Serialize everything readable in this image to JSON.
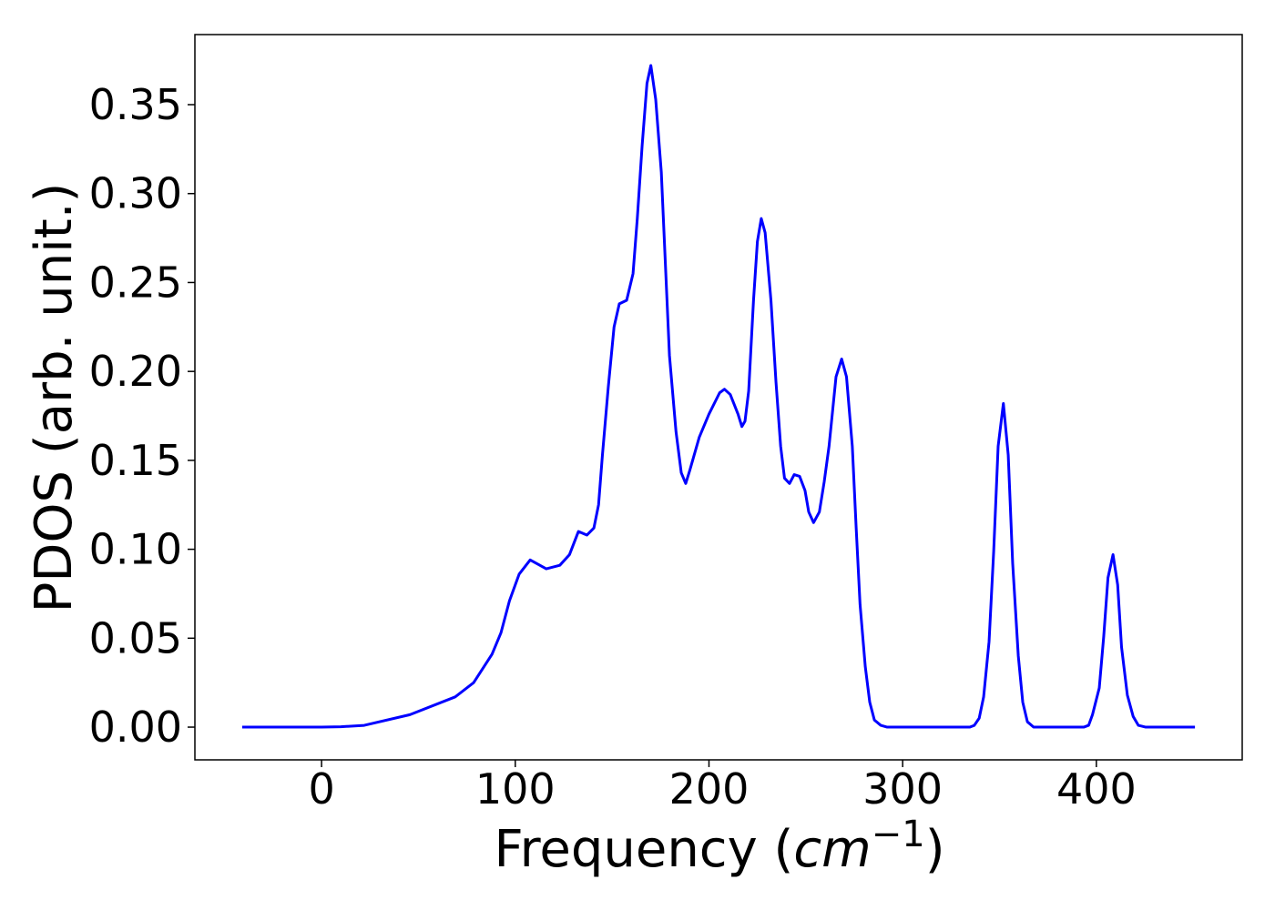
{
  "chart_data": {
    "type": "line",
    "xlabel": {
      "prefix": "Frequency (",
      "italic": "cm",
      "sup": "−1",
      "suffix": ")"
    },
    "ylabel": "PDOS (arb. unit.)",
    "xlim": [
      -65.4,
      475.3
    ],
    "ylim": [
      -0.0184,
      0.3894
    ],
    "xticks": [
      0,
      100,
      200,
      300,
      400
    ],
    "yticks": [
      {
        "value": 0,
        "label": "0.00"
      },
      {
        "value": 0.05,
        "label": "0.05"
      },
      {
        "value": 0.1,
        "label": "0.10"
      },
      {
        "value": 0.15,
        "label": "0.15"
      },
      {
        "value": 0.2,
        "label": "0.20"
      },
      {
        "value": 0.25,
        "label": "0.25"
      },
      {
        "value": 0.3,
        "label": "0.30"
      },
      {
        "value": 0.35,
        "label": "0.35"
      }
    ],
    "series": [
      {
        "color": "#0000ff",
        "x": [
          -41,
          0,
          10,
          22,
          45.6,
          69,
          78.5,
          88,
          92.6,
          97,
          102,
          107.7,
          111,
          116,
          123,
          128,
          132.6,
          137,
          140.6,
          143,
          145,
          148,
          151,
          153.7,
          157.5,
          160.8,
          163,
          165.5,
          168,
          170,
          172.5,
          175.4,
          179.6,
          183,
          185.7,
          188,
          190,
          195,
          200,
          205.5,
          208,
          211,
          215,
          217,
          218.6,
          220.5,
          223,
          225,
          227,
          229,
          232,
          234.6,
          237,
          239,
          241.6,
          244,
          246.8,
          249.6,
          251.5,
          254,
          257,
          259.5,
          262,
          265.6,
          268.5,
          271,
          274,
          276,
          278,
          280.7,
          283,
          285.4,
          288.7,
          292,
          334.7,
          337,
          339.5,
          341.8,
          344.6,
          347,
          349.3,
          352,
          354.5,
          356.8,
          359.7,
          362,
          364.4,
          367.6,
          393.5,
          396,
          398,
          401.5,
          403.8,
          406,
          408.6,
          411,
          413,
          416,
          419,
          421.7,
          425.5,
          450.9
        ],
        "values": [
          0,
          0,
          0.0002,
          0.001,
          0.007,
          0.017,
          0.025,
          0.041,
          0.053,
          0.071,
          0.086,
          0.094,
          0.092,
          0.089,
          0.091,
          0.097,
          0.11,
          0.108,
          0.112,
          0.125,
          0.153,
          0.191,
          0.225,
          0.238,
          0.24,
          0.255,
          0.286,
          0.327,
          0.362,
          0.372,
          0.353,
          0.312,
          0.209,
          0.166,
          0.143,
          0.137,
          0.144,
          0.163,
          0.176,
          0.188,
          0.19,
          0.187,
          0.176,
          0.169,
          0.172,
          0.189,
          0.24,
          0.273,
          0.286,
          0.278,
          0.24,
          0.194,
          0.158,
          0.14,
          0.137,
          0.142,
          0.141,
          0.133,
          0.121,
          0.115,
          0.121,
          0.138,
          0.158,
          0.197,
          0.207,
          0.197,
          0.158,
          0.112,
          0.069,
          0.034,
          0.014,
          0.004,
          0.001,
          0,
          0,
          0.001,
          0.005,
          0.017,
          0.048,
          0.099,
          0.158,
          0.182,
          0.153,
          0.092,
          0.04,
          0.014,
          0.003,
          0,
          0,
          0.001,
          0.007,
          0.022,
          0.051,
          0.084,
          0.097,
          0.08,
          0.045,
          0.018,
          0.006,
          0.001,
          0,
          0
        ]
      }
    ]
  }
}
